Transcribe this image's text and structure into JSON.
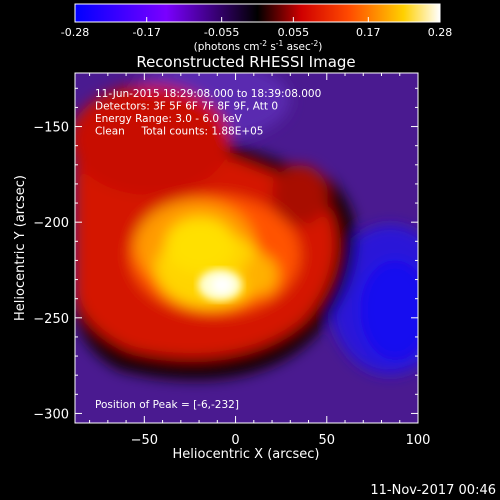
{
  "colorbar": {
    "ticks": [
      "-0.28",
      "-0.17",
      "-0.055",
      "0.055",
      "0.17",
      "0.28"
    ],
    "tick_values": [
      -0.28,
      -0.17,
      -0.055,
      0.055,
      0.17,
      0.28
    ],
    "range": [
      -0.28,
      0.28
    ],
    "units_pre": "(photons cm",
    "units_exp1": "-2",
    "units_mid": " s",
    "units_exp2": "-1",
    "units_mid2": " asec",
    "units_exp3": "-2",
    "units_post": ")"
  },
  "chart_data": {
    "type": "heatmap",
    "title": "Reconstructed RHESSI Image",
    "xlabel": "Heliocentric X (arcsec)",
    "ylabel": "Heliocentric Y (arcsec)",
    "xlim": [
      -88,
      100
    ],
    "ylim": [
      -305,
      -122
    ],
    "x_ticks": [
      -50,
      0,
      50,
      100
    ],
    "x_tick_labels": [
      "−50",
      "0",
      "50",
      "100"
    ],
    "y_ticks": [
      -150,
      -200,
      -250,
      -300
    ],
    "y_tick_labels": [
      "−150",
      "−200",
      "−250",
      "−300"
    ],
    "annotations": [
      "11-Jun-2015 18:29:08.000 to 18:39:08.000",
      "Detectors: 3F 5F 6F 7F 8F 9F, Att 0",
      "Energy Range: 3.0 - 6.0 keV",
      "Clean     Total counts: 1.88E+05"
    ],
    "peak_label": "Position of Peak = [-6,-232]",
    "peak": [
      -6,
      -232
    ],
    "colormap": [
      "#0000ff",
      "#9000ff",
      "#000000",
      "#ff2000",
      "#ffff00",
      "#ffffff"
    ],
    "grid": false
  },
  "footer": {
    "timestamp": "11-Nov-2017 00:46"
  }
}
